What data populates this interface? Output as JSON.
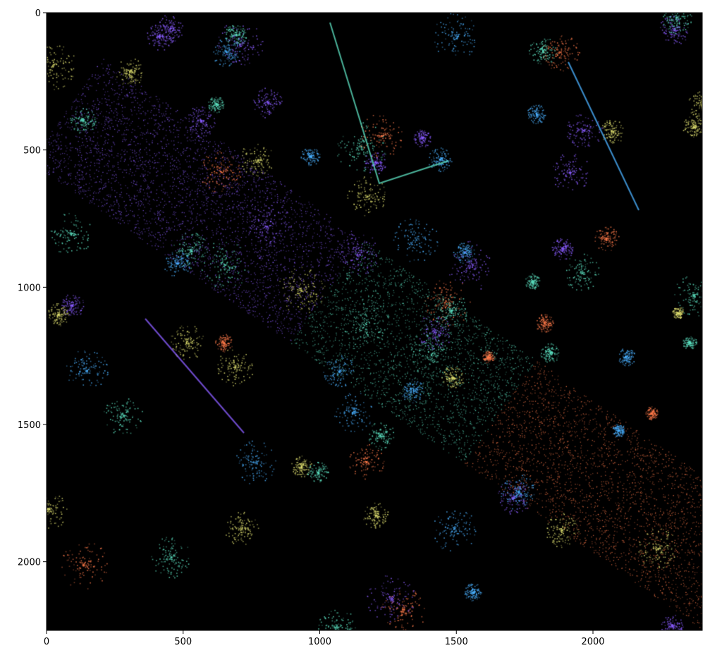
{
  "chart_data": {
    "type": "image",
    "title": "",
    "xlabel": "",
    "ylabel": "",
    "xlim": [
      0,
      2400
    ],
    "ylim": [
      2250,
      0
    ],
    "x_ticks": [
      0,
      500,
      1000,
      1500,
      2000
    ],
    "y_ticks": [
      0,
      500,
      1000,
      1500,
      2000
    ],
    "x_tick_labels": [
      "0",
      "500",
      "1000",
      "1500",
      "2000"
    ],
    "y_tick_labels": [
      "0",
      "500",
      "1000",
      "1500",
      "2000"
    ],
    "grid": false,
    "background_color": "#000000",
    "colors": [
      "#ff7a4a",
      "#5ce0c0",
      "#8a5cff",
      "#4ab0ff",
      "#e0e070"
    ]
  }
}
